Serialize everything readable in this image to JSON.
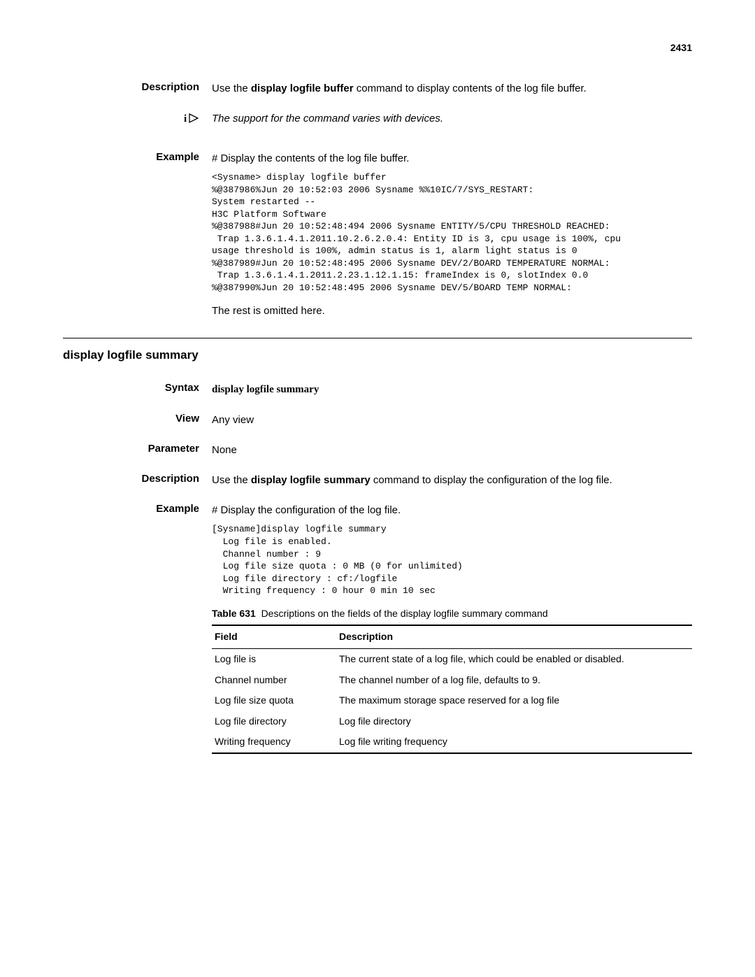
{
  "page_number": "2431",
  "section1": {
    "description_label": "Description",
    "description_text_pre": "Use the ",
    "description_cmd": "display logfile buffer",
    "description_text_post": " command to display contents of the log file buffer.",
    "note_text": "The support for the command varies with devices.",
    "example_label": "Example",
    "example_intro": "# Display the contents of the log file buffer.",
    "code": "<Sysname> display logfile buffer\n%@387986%Jun 20 10:52:03 2006 Sysname %%10IC/7/SYS_RESTART:\nSystem restarted --\nH3C Platform Software\n%@387988#Jun 20 10:52:48:494 2006 Sysname ENTITY/5/CPU THRESHOLD REACHED:\n Trap 1.3.6.1.4.1.2011.10.2.6.2.0.4: Entity ID is 3, cpu usage is 100%, cpu\nusage threshold is 100%, admin status is 1, alarm light status is 0\n%@387989#Jun 20 10:52:48:495 2006 Sysname DEV/2/BOARD TEMPERATURE NORMAL:\n Trap 1.3.6.1.4.1.2011.2.23.1.12.1.15: frameIndex is 0, slotIndex 0.0\n%@387990%Jun 20 10:52:48:495 2006 Sysname DEV/5/BOARD TEMP NORMAL:",
    "omitted": "The rest is omitted here."
  },
  "section2": {
    "heading": "display logfile summary",
    "syntax_label": "Syntax",
    "syntax_cmd": "display logfile summary",
    "view_label": "View",
    "view_text": "Any view",
    "parameter_label": "Parameter",
    "parameter_text": "None",
    "description_label": "Description",
    "description_text_pre": "Use the ",
    "description_cmd": "display logfile summary",
    "description_text_post": " command to display the configuration of the log file.",
    "example_label": "Example",
    "example_intro": "# Display the configuration of the log file.",
    "code": "[Sysname]display logfile summary\n  Log file is enabled.\n  Channel number : 9\n  Log file size quota : 0 MB (0 for unlimited)\n  Log file directory : cf:/logfile\n  Writing frequency : 0 hour 0 min 10 sec",
    "table_caption_label": "Table 631",
    "table_caption_text": "Descriptions on the fields of the display logfile summary command",
    "table_header_field": "Field",
    "table_header_desc": "Description",
    "table_rows": [
      {
        "field": "Log file is",
        "desc": "The current state of a log file, which could be enabled or disabled."
      },
      {
        "field": "Channel number",
        "desc": "The channel number of a log file, defaults to 9."
      },
      {
        "field": "Log file size quota",
        "desc": "The maximum storage space reserved for a log file"
      },
      {
        "field": "Log file directory",
        "desc": "Log file directory"
      },
      {
        "field": "Writing frequency",
        "desc": "Log file writing frequency"
      }
    ]
  },
  "colors": {
    "text": "#000000",
    "background": "#ffffff",
    "rule": "#000000"
  }
}
